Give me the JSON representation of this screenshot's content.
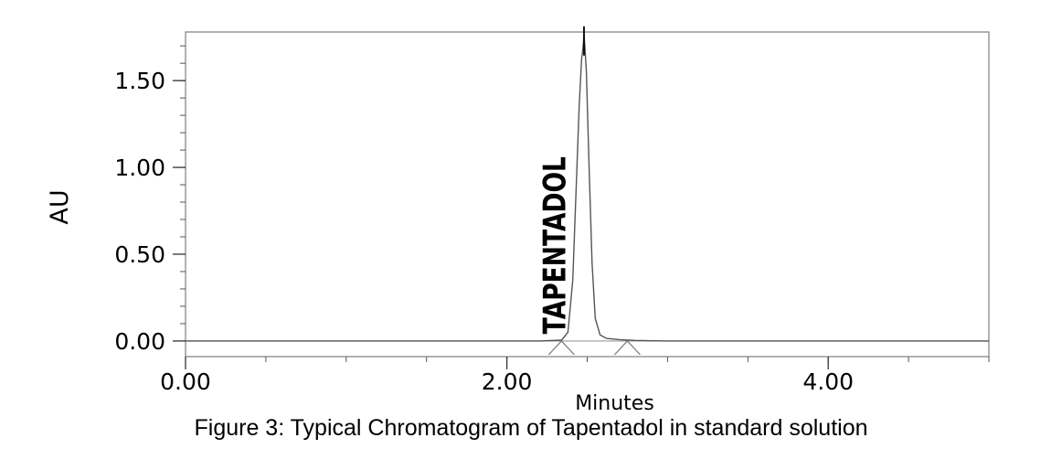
{
  "caption": "Figure 3: Typical Chromatogram of Tapentadol in standard solution",
  "chart_data": {
    "type": "line",
    "xlabel": "Minutes",
    "ylabel": "AU",
    "xlim": [
      0,
      5.0
    ],
    "ylim": [
      -0.09,
      1.78
    ],
    "xticks": [
      0,
      2,
      4
    ],
    "xtick_labels": [
      "0.00",
      "2.00",
      "4.00"
    ],
    "x_minor_step": 0.5,
    "yticks": [
      0,
      0.5,
      1.0,
      1.5
    ],
    "ytick_labels": [
      "0.00",
      "0.50",
      "1.00",
      "1.50"
    ],
    "y_minor_step": 0.1,
    "grid": false,
    "series": [
      {
        "x": [
          0,
          2.2,
          2.34,
          2.38,
          2.41,
          2.43,
          2.45,
          2.465,
          2.475,
          2.48,
          2.485,
          2.495,
          2.51,
          2.53,
          2.55,
          2.58,
          2.62,
          2.7,
          2.8,
          3.0,
          5.0
        ],
        "y": [
          0,
          0,
          0.005,
          0.05,
          0.35,
          0.85,
          1.35,
          1.62,
          1.7,
          1.76,
          1.7,
          1.55,
          1.05,
          0.45,
          0.13,
          0.035,
          0.015,
          0.008,
          0.003,
          0,
          0
        ]
      }
    ],
    "annotations": [
      {
        "text": "TAPENTADOL",
        "x": 2.22,
        "y": 0.04,
        "orientation": "vertical"
      }
    ],
    "baseline_markers": [
      {
        "x": 2.34,
        "y": 0
      },
      {
        "x": 2.75,
        "y": 0
      }
    ],
    "apex_marker": {
      "x": 2.48,
      "y": 1.76
    }
  }
}
